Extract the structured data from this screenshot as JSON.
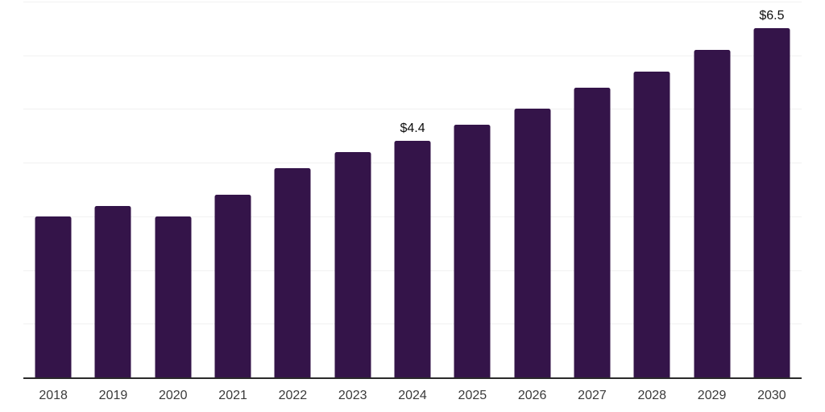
{
  "chart_data": {
    "type": "bar",
    "title": "",
    "xlabel": "",
    "ylabel": "",
    "categories": [
      "2018",
      "2019",
      "2020",
      "2021",
      "2022",
      "2023",
      "2024",
      "2025",
      "2026",
      "2027",
      "2028",
      "2029",
      "2030"
    ],
    "values": [
      3.0,
      3.2,
      3.0,
      3.4,
      3.9,
      4.2,
      4.4,
      4.7,
      5.0,
      5.4,
      5.7,
      6.1,
      6.5
    ],
    "data_labels": {
      "2024": "$4.4",
      "2030": "$6.5"
    },
    "ylim": [
      0,
      7
    ],
    "gridline_step": 1,
    "grid": "horizontal",
    "legend": "none",
    "y_axis_labels_visible": false
  },
  "colors": {
    "bar": "#341449",
    "gridline": "#f1f1f1",
    "axis_line": "#2a2a2a",
    "tick_label": "#3a3a3a",
    "data_label": "#0d0d0d",
    "background": "#ffffff"
  }
}
